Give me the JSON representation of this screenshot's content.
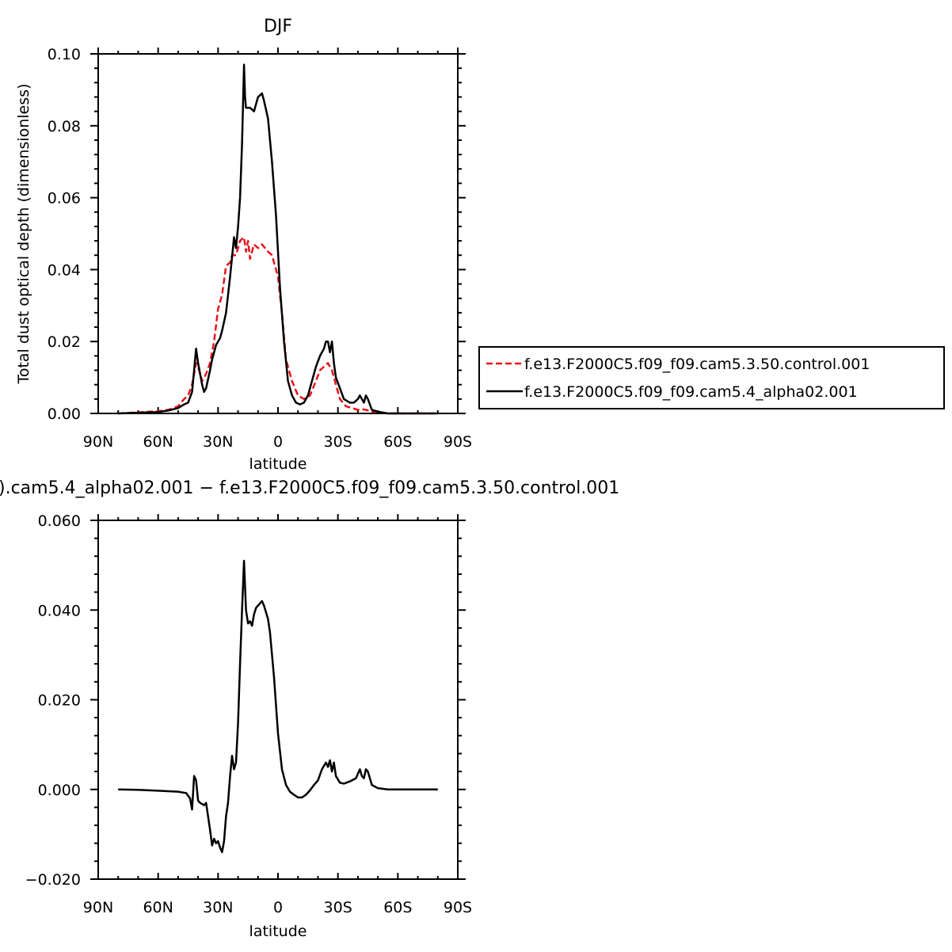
{
  "chart_data": [
    {
      "type": "line",
      "title": "DJF",
      "xlabel": "latitude",
      "ylabel": "Total dust optical depth (dimensionless)",
      "xlim": [
        90,
        -90
      ],
      "ylim": [
        0,
        0.1
      ],
      "x_ticks": [
        90,
        60,
        30,
        0,
        -30,
        -60,
        -90
      ],
      "x_tick_labels": [
        "90N",
        "60N",
        "30N",
        "0",
        "30S",
        "60S",
        "90S"
      ],
      "y_ticks": [
        0,
        0.02,
        0.04,
        0.06,
        0.08,
        0.1
      ],
      "y_tick_labels": [
        "0.00",
        "0.02",
        "0.04",
        "0.06",
        "0.08",
        "0.10"
      ],
      "legend": "right",
      "series": [
        {
          "name": "f.e13.F2000C5.f09_f09.cam5.3.50.control.001",
          "color": "#e8141b",
          "dash": "dashed",
          "points": [
            [
              80,
              0
            ],
            [
              70,
              0.0003
            ],
            [
              60,
              0.0006
            ],
            [
              55,
              0.001
            ],
            [
              50,
              0.002
            ],
            [
              47,
              0.004
            ],
            [
              45,
              0.005
            ],
            [
              43,
              0.008
            ],
            [
              41,
              0.014
            ],
            [
              40,
              0.013
            ],
            [
              38,
              0.009
            ],
            [
              36,
              0.011
            ],
            [
              34,
              0.014
            ],
            [
              32,
              0.02
            ],
            [
              30,
              0.029
            ],
            [
              28,
              0.033
            ],
            [
              26,
              0.041
            ],
            [
              24,
              0.042
            ],
            [
              23,
              0.044
            ],
            [
              21,
              0.044
            ],
            [
              19,
              0.048
            ],
            [
              17,
              0.049
            ],
            [
              16,
              0.045
            ],
            [
              15,
              0.048
            ],
            [
              14,
              0.043
            ],
            [
              12,
              0.047
            ],
            [
              10,
              0.046
            ],
            [
              8,
              0.047
            ],
            [
              5,
              0.045
            ],
            [
              3,
              0.044
            ],
            [
              1,
              0.04
            ],
            [
              0,
              0.038
            ],
            [
              -2,
              0.028
            ],
            [
              -4,
              0.015
            ],
            [
              -7,
              0.009
            ],
            [
              -10,
              0.005
            ],
            [
              -13,
              0.004
            ],
            [
              -16,
              0.005
            ],
            [
              -19,
              0.009
            ],
            [
              -21,
              0.012
            ],
            [
              -23,
              0.013
            ],
            [
              -25,
              0.014
            ],
            [
              -27,
              0.012
            ],
            [
              -29,
              0.008
            ],
            [
              -31,
              0.004
            ],
            [
              -34,
              0.002
            ],
            [
              -37,
              0.0015
            ],
            [
              -40,
              0.001
            ],
            [
              -42,
              0.0012
            ],
            [
              -44,
              0.001
            ],
            [
              -47,
              0.0005
            ],
            [
              -50,
              0.0002
            ],
            [
              -55,
              0
            ],
            [
              -60,
              0
            ],
            [
              -70,
              0
            ],
            [
              -80,
              0
            ]
          ]
        },
        {
          "name": "f.e13.F2000C5.f09_f09.cam5.4_alpha02.001",
          "color": "#000000",
          "dash": "solid",
          "points": [
            [
              80,
              0
            ],
            [
              70,
              0.0002
            ],
            [
              60,
              0.0004
            ],
            [
              55,
              0.0008
            ],
            [
              50,
              0.0015
            ],
            [
              47,
              0.0025
            ],
            [
              45,
              0.003
            ],
            [
              43,
              0.006
            ],
            [
              42,
              0.012
            ],
            [
              41,
              0.018
            ],
            [
              40,
              0.014
            ],
            [
              38,
              0.008
            ],
            [
              37,
              0.006
            ],
            [
              36,
              0.007
            ],
            [
              34,
              0.012
            ],
            [
              33,
              0.015
            ],
            [
              31,
              0.019
            ],
            [
              29,
              0.021
            ],
            [
              28,
              0.023
            ],
            [
              26,
              0.028
            ],
            [
              24,
              0.038
            ],
            [
              22,
              0.049
            ],
            [
              21,
              0.046
            ],
            [
              20,
              0.052
            ],
            [
              19,
              0.06
            ],
            [
              18,
              0.075
            ],
            [
              17,
              0.097
            ],
            [
              16.5,
              0.088
            ],
            [
              16,
              0.085
            ],
            [
              14,
              0.085
            ],
            [
              12,
              0.084
            ],
            [
              10,
              0.088
            ],
            [
              8,
              0.089
            ],
            [
              7,
              0.087
            ],
            [
              5,
              0.082
            ],
            [
              3,
              0.07
            ],
            [
              1,
              0.055
            ],
            [
              -1,
              0.035
            ],
            [
              -3,
              0.02
            ],
            [
              -5,
              0.009
            ],
            [
              -7,
              0.005
            ],
            [
              -9,
              0.003
            ],
            [
              -11,
              0.0025
            ],
            [
              -13,
              0.003
            ],
            [
              -15,
              0.005
            ],
            [
              -17,
              0.009
            ],
            [
              -19,
              0.013
            ],
            [
              -21,
              0.016
            ],
            [
              -23,
              0.018
            ],
            [
              -24,
              0.02
            ],
            [
              -25,
              0.02
            ],
            [
              -26,
              0.017
            ],
            [
              -27,
              0.02
            ],
            [
              -28,
              0.014
            ],
            [
              -29,
              0.01
            ],
            [
              -31,
              0.007
            ],
            [
              -33,
              0.004
            ],
            [
              -36,
              0.003
            ],
            [
              -38,
              0.003
            ],
            [
              -40,
              0.004
            ],
            [
              -41,
              0.005
            ],
            [
              -42,
              0.004
            ],
            [
              -43,
              0.003
            ],
            [
              -44,
              0.005
            ],
            [
              -45,
              0.004
            ],
            [
              -47,
              0.001
            ],
            [
              -50,
              0.0005
            ],
            [
              -55,
              0
            ],
            [
              -60,
              0
            ],
            [
              -70,
              0
            ],
            [
              -80,
              0
            ]
          ]
        }
      ]
    },
    {
      "type": "line",
      "title": ").cam5.4_alpha02.001 − f.e13.F2000C5.f09_f09.cam5.3.50.control.001",
      "xlabel": "latitude",
      "ylabel": "",
      "xlim": [
        90,
        -90
      ],
      "ylim": [
        -0.02,
        0.06
      ],
      "x_ticks": [
        90,
        60,
        30,
        0,
        -30,
        -60,
        -90
      ],
      "x_tick_labels": [
        "90N",
        "60N",
        "30N",
        "0",
        "30S",
        "60S",
        "90S"
      ],
      "y_ticks": [
        -0.02,
        0,
        0.02,
        0.04,
        0.06
      ],
      "y_tick_labels": [
        "−0.020",
        "0.000",
        "0.020",
        "0.040",
        "0.060"
      ],
      "series": [
        {
          "color": "#000000",
          "dash": "solid",
          "points": [
            [
              80,
              0
            ],
            [
              70,
              -0.0001
            ],
            [
              60,
              -0.0003
            ],
            [
              50,
              -0.0005
            ],
            [
              46,
              -0.0008
            ],
            [
              44,
              -0.002
            ],
            [
              43,
              -0.0045
            ],
            [
              42,
              0.003
            ],
            [
              41,
              0.002
            ],
            [
              40,
              -0.0025
            ],
            [
              39,
              -0.003
            ],
            [
              37,
              -0.0035
            ],
            [
              36,
              -0.003
            ],
            [
              35,
              -0.006
            ],
            [
              34,
              -0.009
            ],
            [
              33,
              -0.0125
            ],
            [
              32,
              -0.011
            ],
            [
              31,
              -0.012
            ],
            [
              30,
              -0.0115
            ],
            [
              29,
              -0.013
            ],
            [
              28,
              -0.014
            ],
            [
              27,
              -0.0115
            ],
            [
              26,
              -0.006
            ],
            [
              25,
              -0.003
            ],
            [
              24,
              0.003
            ],
            [
              23,
              0.0075
            ],
            [
              22,
              0.0045
            ],
            [
              21,
              0.006
            ],
            [
              20,
              0.015
            ],
            [
              19,
              0.028
            ],
            [
              18,
              0.04
            ],
            [
              17,
              0.051
            ],
            [
              16,
              0.04
            ],
            [
              15,
              0.037
            ],
            [
              14,
              0.0375
            ],
            [
              13,
              0.0365
            ],
            [
              12,
              0.039
            ],
            [
              11,
              0.0405
            ],
            [
              10,
              0.041
            ],
            [
              9,
              0.0415
            ],
            [
              8,
              0.042
            ],
            [
              7,
              0.041
            ],
            [
              6,
              0.0395
            ],
            [
              5,
              0.038
            ],
            [
              4,
              0.035
            ],
            [
              2,
              0.025
            ],
            [
              0,
              0.0125
            ],
            [
              -2,
              0.0045
            ],
            [
              -4,
              0.001
            ],
            [
              -6,
              -0.0005
            ],
            [
              -8,
              -0.0012
            ],
            [
              -10,
              -0.0018
            ],
            [
              -12,
              -0.0018
            ],
            [
              -14,
              -0.0012
            ],
            [
              -16,
              -0.0002
            ],
            [
              -18,
              0.001
            ],
            [
              -20,
              0.002
            ],
            [
              -22,
              0.0045
            ],
            [
              -24,
              0.006
            ],
            [
              -25,
              0.005
            ],
            [
              -26,
              0.0065
            ],
            [
              -27,
              0.004
            ],
            [
              -28,
              0.006
            ],
            [
              -29,
              0.003
            ],
            [
              -31,
              0.0015
            ],
            [
              -33,
              0.0013
            ],
            [
              -36,
              0.0018
            ],
            [
              -39,
              0.0025
            ],
            [
              -41,
              0.0045
            ],
            [
              -42,
              0.003
            ],
            [
              -43,
              0.0025
            ],
            [
              -44,
              0.0045
            ],
            [
              -45,
              0.004
            ],
            [
              -47,
              0.001
            ],
            [
              -50,
              0.0003
            ],
            [
              -55,
              0
            ],
            [
              -60,
              0
            ],
            [
              -70,
              0
            ],
            [
              -80,
              0
            ]
          ]
        }
      ]
    }
  ]
}
